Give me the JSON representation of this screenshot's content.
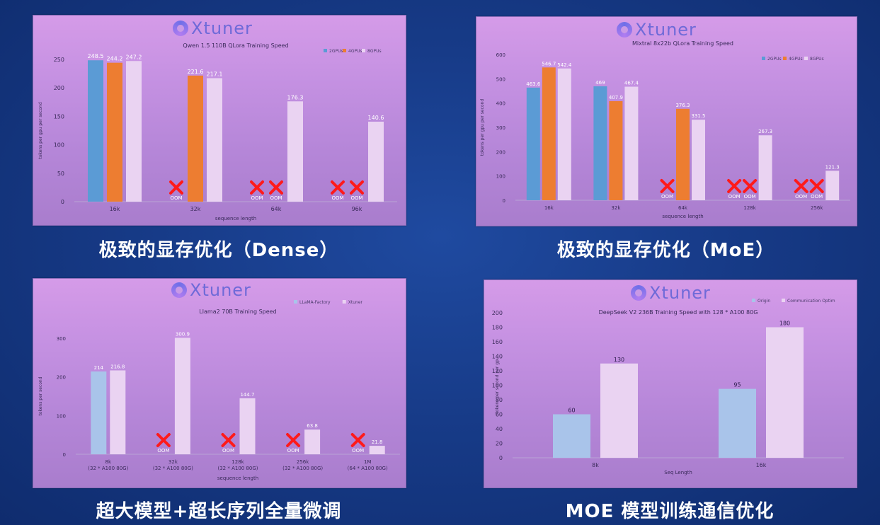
{
  "colors": {
    "blue": "#5b9bd5",
    "orange": "#ed7d31",
    "lavender": "#ead3f2",
    "lightblue": "#a9c4ea",
    "oom_x": "#ff1a1a"
  },
  "panels": [
    {
      "logo_text": "Xtuner",
      "caption": "极致的显存优化（Dense）"
    },
    {
      "logo_text": "Xtuner",
      "caption": "极致的显存优化（MoE）"
    },
    {
      "logo_text": "Xtuner",
      "caption": "超大模型+超长序列全量微调"
    },
    {
      "logo_text": "Xtuner",
      "caption": "MOE 模型训练通信优化"
    }
  ],
  "chart_data": [
    {
      "type": "bar",
      "title": "Qwen 1.5 110B QLora Training Speed",
      "xlabel": "sequence length",
      "ylabel": "tokens per gpu per second",
      "categories": [
        "16k",
        "32k",
        "64k",
        "96k"
      ],
      "ylim": [
        0,
        250
      ],
      "yticks": [
        0,
        50,
        100,
        150,
        200,
        250
      ],
      "legend_position": "top-right",
      "series": [
        {
          "name": "2GPUs",
          "color": "#5b9bd5",
          "values": [
            248.5,
            null,
            null,
            null
          ]
        },
        {
          "name": "4GPUs",
          "color": "#ed7d31",
          "values": [
            244.2,
            221.6,
            null,
            null
          ]
        },
        {
          "name": "8GPUs",
          "color": "#ead3f2",
          "values": [
            247.2,
            217.1,
            176.3,
            140.6
          ]
        }
      ],
      "oom_label": "OOM"
    },
    {
      "type": "bar",
      "title": "Mixtral 8x22b QLora Training Speed",
      "xlabel": "sequence length",
      "ylabel": "tokens per gpu per second",
      "categories": [
        "16k",
        "32k",
        "64k",
        "128k",
        "256k"
      ],
      "ylim": [
        0,
        600
      ],
      "yticks": [
        0,
        100,
        200,
        300,
        400,
        500,
        600
      ],
      "legend_position": "top-right",
      "series": [
        {
          "name": "2GPUs",
          "color": "#5b9bd5",
          "values": [
            463.6,
            469,
            null,
            null,
            null
          ]
        },
        {
          "name": "4GPUs",
          "color": "#ed7d31",
          "values": [
            546.7,
            407.9,
            376.3,
            null,
            null
          ]
        },
        {
          "name": "8GPUs",
          "color": "#ead3f2",
          "values": [
            542.4,
            467.4,
            331.5,
            267.3,
            121.3
          ]
        }
      ],
      "oom_label": "OOM"
    },
    {
      "type": "bar",
      "title": "Llama2 70B Training Speed",
      "xlabel": "sequence length",
      "ylabel": "tokens per second",
      "categories": [
        "8k",
        "32k",
        "128k",
        "256k",
        "1M"
      ],
      "category_sublabels": [
        "(32 * A100 80G)",
        "(32 * A100 80G)",
        "(32 * A100 80G)",
        "(32 * A100 80G)",
        "(64 * A100 80G)"
      ],
      "ylim": [
        0,
        300
      ],
      "yticks": [
        0,
        100,
        200,
        300
      ],
      "legend_position": "top-right",
      "series": [
        {
          "name": "LLaMA-Factory",
          "color": "#a9c4ea",
          "values": [
            214,
            null,
            null,
            null,
            null
          ]
        },
        {
          "name": "Xtuner",
          "color": "#ead3f2",
          "values": [
            216.8,
            300.9,
            144.7,
            63.8,
            21.8
          ]
        }
      ],
      "oom_label": "OOM"
    },
    {
      "type": "bar",
      "title": "DeepSeek V2 236B Training Speed with 128 * A100 80G",
      "xlabel": "Seq Length",
      "ylabel": "tokens per second per gpu",
      "categories": [
        "8k",
        "16k"
      ],
      "ylim": [
        0,
        200
      ],
      "yticks": [
        0,
        20,
        40,
        60,
        80,
        100,
        120,
        140,
        160,
        180,
        200
      ],
      "legend_position": "top-right",
      "series": [
        {
          "name": "Origin",
          "color": "#a9c4ea",
          "values": [
            60,
            95
          ]
        },
        {
          "name": "Communication Optim",
          "color": "#ead3f2",
          "values": [
            130,
            180
          ]
        }
      ]
    }
  ]
}
